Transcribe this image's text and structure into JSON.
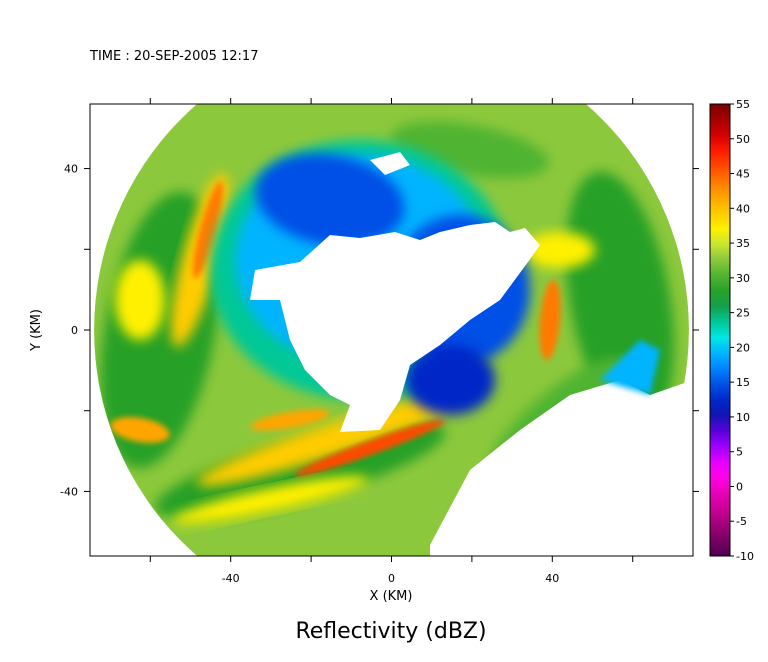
{
  "header": {
    "time_label": "TIME : 20-SEP-2005 12:17"
  },
  "chart_data": {
    "type": "heatmap",
    "title": "Reflectivity (dBZ)",
    "xlabel": "X (KM)",
    "ylabel": "Y (KM)",
    "xlim": [
      -75,
      75
    ],
    "ylim": [
      -56,
      56
    ],
    "xticks": [
      -40,
      0,
      40
    ],
    "yticks": [
      -40,
      0,
      40
    ],
    "xtick_labels": [
      "-40",
      "0",
      "40"
    ],
    "ytick_labels": [
      "-40",
      "0",
      "40"
    ],
    "grid": false,
    "radar_coverage": {
      "center_km": [
        0,
        0
      ],
      "radius_km": 74
    },
    "colorbar": {
      "min": -10,
      "max": 55,
      "ticks": [
        55,
        50,
        45,
        40,
        35,
        30,
        25,
        20,
        15,
        10,
        5,
        0,
        -5,
        -10
      ],
      "tick_labels": [
        "55",
        "50",
        "45",
        "40",
        "35",
        "30",
        "25",
        "20",
        "15",
        "10",
        "5",
        "0",
        "-5",
        "-10"
      ],
      "colors": [
        "#7a0000",
        "#a50000",
        "#d40000",
        "#ff1a00",
        "#ff4a00",
        "#ff7a00",
        "#ffa500",
        "#ffcc00",
        "#fff000",
        "#c8e632",
        "#8cc83c",
        "#50b432",
        "#28a028",
        "#14a050",
        "#00c896",
        "#00e6e6",
        "#00b4ff",
        "#0082ff",
        "#0050e6",
        "#0028c8",
        "#1414b4",
        "#5a00dc",
        "#a000ff",
        "#e600ff",
        "#ff00e6",
        "#e600b4",
        "#c80096",
        "#a00078",
        "#780064",
        "#500050"
      ]
    }
  }
}
